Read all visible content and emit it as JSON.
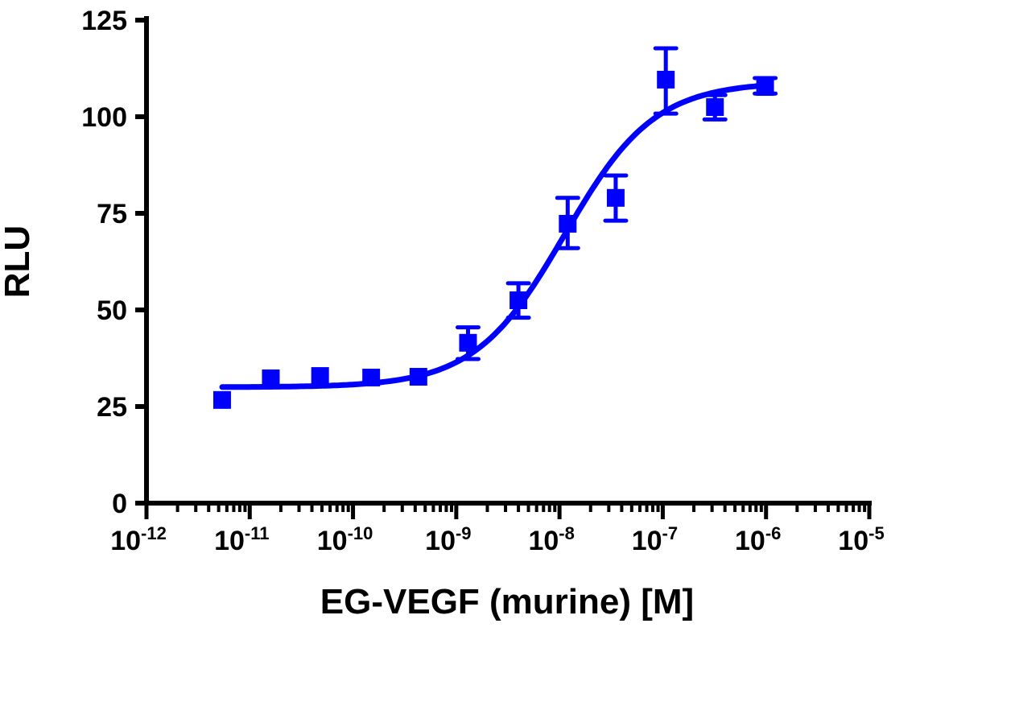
{
  "chart_data": {
    "type": "scatter",
    "xlabel": "EG-VEGF (murine) [M]",
    "ylabel": "RLU",
    "xscale": "log",
    "xlim": [
      1e-12,
      1e-05
    ],
    "ylim": [
      0,
      125
    ],
    "grid": false,
    "legend": "none",
    "color": "#0000ff",
    "marker": "square",
    "x_tick_labels": [
      {
        "base": "10",
        "exp": "-12"
      },
      {
        "base": "10",
        "exp": "-11"
      },
      {
        "base": "10",
        "exp": "-10"
      },
      {
        "base": "10",
        "exp": "-9"
      },
      {
        "base": "10",
        "exp": "-8"
      },
      {
        "base": "10",
        "exp": "-7"
      },
      {
        "base": "10",
        "exp": "-6"
      },
      {
        "base": "10",
        "exp": "-5"
      }
    ],
    "y_ticks": [
      "0",
      "25",
      "50",
      "75",
      "100",
      "125"
    ],
    "points": [
      {
        "x": 5.4e-12,
        "y": 26.7,
        "err_low": 26.7,
        "err_high": 26.7
      },
      {
        "x": 1.6e-11,
        "y": 32.3,
        "err_low": 32.3,
        "err_high": 32.3
      },
      {
        "x": 4.8e-11,
        "y": 32.9,
        "err_low": 32.9,
        "err_high": 32.9
      },
      {
        "x": 1.5e-10,
        "y": 32.5,
        "err_low": 32.5,
        "err_high": 32.5
      },
      {
        "x": 4.3e-10,
        "y": 32.7,
        "err_low": 32.7,
        "err_high": 32.7
      },
      {
        "x": 1.3e-09,
        "y": 41.5,
        "err_low": 37.3,
        "err_high": 45.5
      },
      {
        "x": 4e-09,
        "y": 52.5,
        "err_low": 48.0,
        "err_high": 56.9
      },
      {
        "x": 1.2e-08,
        "y": 72.3,
        "err_low": 66.0,
        "err_high": 79.0
      },
      {
        "x": 3.5e-08,
        "y": 79.0,
        "err_low": 73.1,
        "err_high": 84.8
      },
      {
        "x": 1.07e-07,
        "y": 109.6,
        "err_low": 100.8,
        "err_high": 117.7
      },
      {
        "x": 3.2e-07,
        "y": 102.5,
        "err_low": 99.3,
        "err_high": 105.6
      },
      {
        "x": 9.8e-07,
        "y": 107.7,
        "err_low": 106.0,
        "err_high": 110.0
      }
    ],
    "fit": {
      "type": "sigmoidal dose-response",
      "bottom": 30,
      "top": 109,
      "logEC50": -7.95,
      "hill": 1
    }
  }
}
